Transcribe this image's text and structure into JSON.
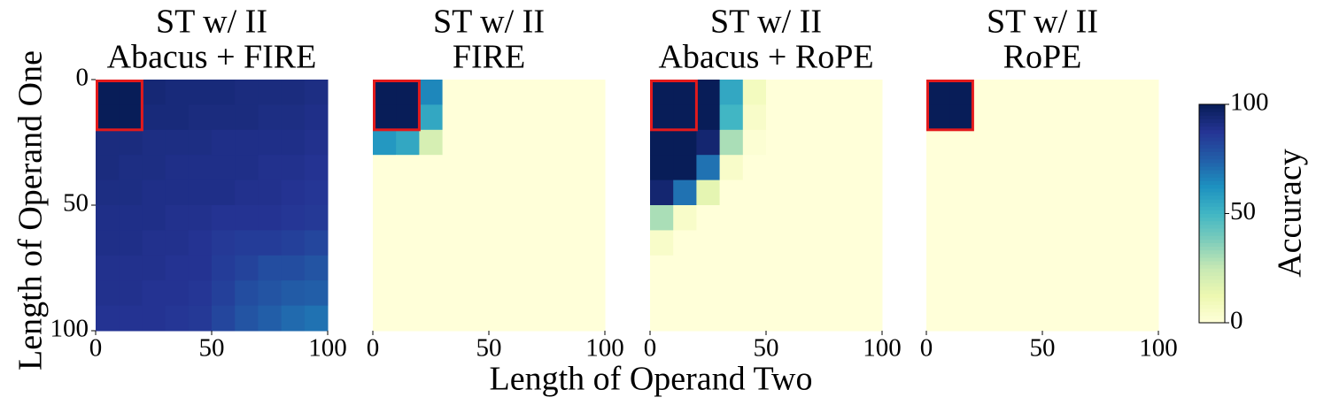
{
  "chart_data": [
    {
      "type": "heatmap",
      "title": "ST w/ II",
      "subtitle": "Abacus + FIRE",
      "xbins": [
        0,
        10,
        20,
        30,
        40,
        50,
        60,
        70,
        80,
        90,
        100
      ],
      "ybins": [
        0,
        10,
        20,
        30,
        40,
        50,
        60,
        70,
        80,
        90,
        100
      ],
      "xlim": [
        0,
        100
      ],
      "ylim": [
        0,
        100
      ],
      "xticks": [
        0,
        50,
        100
      ],
      "yticks": [
        0,
        50,
        100
      ],
      "z": [
        [
          100,
          100,
          94,
          93,
          93,
          93,
          92,
          92,
          92,
          91
        ],
        [
          100,
          100,
          93,
          93,
          92,
          92,
          92,
          91,
          91,
          90
        ],
        [
          92,
          92,
          91,
          91,
          91,
          90,
          90,
          90,
          90,
          89
        ],
        [
          92,
          91,
          91,
          90,
          90,
          90,
          90,
          89,
          89,
          88
        ],
        [
          91,
          91,
          90,
          90,
          90,
          90,
          89,
          89,
          88,
          87
        ],
        [
          90,
          90,
          90,
          89,
          89,
          88,
          88,
          88,
          87,
          86
        ],
        [
          90,
          90,
          89,
          89,
          88,
          86,
          85,
          85,
          84,
          82
        ],
        [
          89,
          89,
          89,
          88,
          88,
          85,
          83,
          80,
          80,
          78
        ],
        [
          89,
          89,
          88,
          88,
          87,
          84,
          80,
          78,
          76,
          75
        ],
        [
          88,
          88,
          88,
          87,
          86,
          82,
          78,
          75,
          72,
          70
        ]
      ],
      "highlight": {
        "x": [
          0,
          20
        ],
        "y": [
          0,
          20
        ],
        "color": "#e31a1c"
      }
    },
    {
      "type": "heatmap",
      "title": "ST w/ II",
      "subtitle": "FIRE",
      "xbins": [
        0,
        10,
        20,
        30,
        40,
        50,
        60,
        70,
        80,
        90,
        100
      ],
      "ybins": [
        0,
        10,
        20,
        30,
        40,
        50,
        60,
        70,
        80,
        90,
        100
      ],
      "xlim": [
        0,
        100
      ],
      "ylim": [
        0,
        100
      ],
      "xticks": [
        0,
        50,
        100
      ],
      "z": [
        [
          100,
          100,
          65,
          0,
          0,
          0,
          0,
          0,
          0,
          0
        ],
        [
          100,
          100,
          55,
          0,
          0,
          0,
          0,
          0,
          0,
          0
        ],
        [
          60,
          55,
          20,
          0,
          0,
          0,
          0,
          0,
          0,
          0
        ],
        [
          0,
          0,
          0,
          0,
          0,
          0,
          0,
          0,
          0,
          0
        ],
        [
          0,
          0,
          0,
          0,
          0,
          0,
          0,
          0,
          0,
          0
        ],
        [
          0,
          0,
          0,
          0,
          0,
          0,
          0,
          0,
          0,
          0
        ],
        [
          0,
          0,
          0,
          0,
          0,
          0,
          0,
          0,
          0,
          0
        ],
        [
          0,
          0,
          0,
          0,
          0,
          0,
          0,
          0,
          0,
          0
        ],
        [
          0,
          0,
          0,
          0,
          0,
          0,
          0,
          0,
          0,
          0
        ],
        [
          0,
          0,
          0,
          0,
          0,
          0,
          0,
          0,
          0,
          0
        ]
      ],
      "highlight": {
        "x": [
          0,
          20
        ],
        "y": [
          0,
          20
        ],
        "color": "#e31a1c"
      }
    },
    {
      "type": "heatmap",
      "title": "ST w/ II",
      "subtitle": "Abacus + RoPE",
      "xbins": [
        0,
        10,
        20,
        30,
        40,
        50,
        60,
        70,
        80,
        90,
        100
      ],
      "ybins": [
        0,
        10,
        20,
        30,
        40,
        50,
        60,
        70,
        80,
        90,
        100
      ],
      "xlim": [
        0,
        100
      ],
      "ylim": [
        0,
        100
      ],
      "xticks": [
        0,
        50,
        100
      ],
      "z": [
        [
          100,
          100,
          100,
          55,
          8,
          0,
          0,
          0,
          0,
          0
        ],
        [
          100,
          100,
          100,
          50,
          5,
          0,
          0,
          0,
          0,
          0
        ],
        [
          100,
          100,
          95,
          30,
          2,
          0,
          0,
          0,
          0,
          0
        ],
        [
          100,
          100,
          70,
          5,
          0,
          0,
          0,
          0,
          0,
          0
        ],
        [
          95,
          70,
          15,
          0,
          0,
          0,
          0,
          0,
          0,
          0
        ],
        [
          30,
          5,
          0,
          0,
          0,
          0,
          0,
          0,
          0,
          0
        ],
        [
          5,
          0,
          0,
          0,
          0,
          0,
          0,
          0,
          0,
          0
        ],
        [
          0,
          0,
          0,
          0,
          0,
          0,
          0,
          0,
          0,
          0
        ],
        [
          0,
          0,
          0,
          0,
          0,
          0,
          0,
          0,
          0,
          0
        ],
        [
          0,
          0,
          0,
          0,
          0,
          0,
          0,
          0,
          0,
          0
        ]
      ],
      "highlight": {
        "x": [
          0,
          20
        ],
        "y": [
          0,
          20
        ],
        "color": "#e31a1c"
      }
    },
    {
      "type": "heatmap",
      "title": "ST w/ II",
      "subtitle": "RoPE",
      "xbins": [
        0,
        10,
        20,
        30,
        40,
        50,
        60,
        70,
        80,
        90,
        100
      ],
      "ybins": [
        0,
        10,
        20,
        30,
        40,
        50,
        60,
        70,
        80,
        90,
        100
      ],
      "xlim": [
        0,
        100
      ],
      "ylim": [
        0,
        100
      ],
      "xticks": [
        0,
        50,
        100
      ],
      "z": [
        [
          100,
          100,
          0,
          0,
          0,
          0,
          0,
          0,
          0,
          0
        ],
        [
          100,
          100,
          0,
          0,
          0,
          0,
          0,
          0,
          0,
          0
        ],
        [
          0,
          0,
          0,
          0,
          0,
          0,
          0,
          0,
          0,
          0
        ],
        [
          0,
          0,
          0,
          0,
          0,
          0,
          0,
          0,
          0,
          0
        ],
        [
          0,
          0,
          0,
          0,
          0,
          0,
          0,
          0,
          0,
          0
        ],
        [
          0,
          0,
          0,
          0,
          0,
          0,
          0,
          0,
          0,
          0
        ],
        [
          0,
          0,
          0,
          0,
          0,
          0,
          0,
          0,
          0,
          0
        ],
        [
          0,
          0,
          0,
          0,
          0,
          0,
          0,
          0,
          0,
          0
        ],
        [
          0,
          0,
          0,
          0,
          0,
          0,
          0,
          0,
          0,
          0
        ],
        [
          0,
          0,
          0,
          0,
          0,
          0,
          0,
          0,
          0,
          0
        ]
      ],
      "highlight": {
        "x": [
          0,
          20
        ],
        "y": [
          0,
          20
        ],
        "color": "#e31a1c"
      }
    }
  ],
  "shared": {
    "xlabel": "Length of Operand Two",
    "ylabel": "Length of Operand One",
    "colormap": "YlGnBu",
    "colorbar": {
      "label": "Accuracy",
      "lim": [
        0,
        100
      ],
      "ticks": [
        0,
        50,
        100
      ]
    }
  }
}
